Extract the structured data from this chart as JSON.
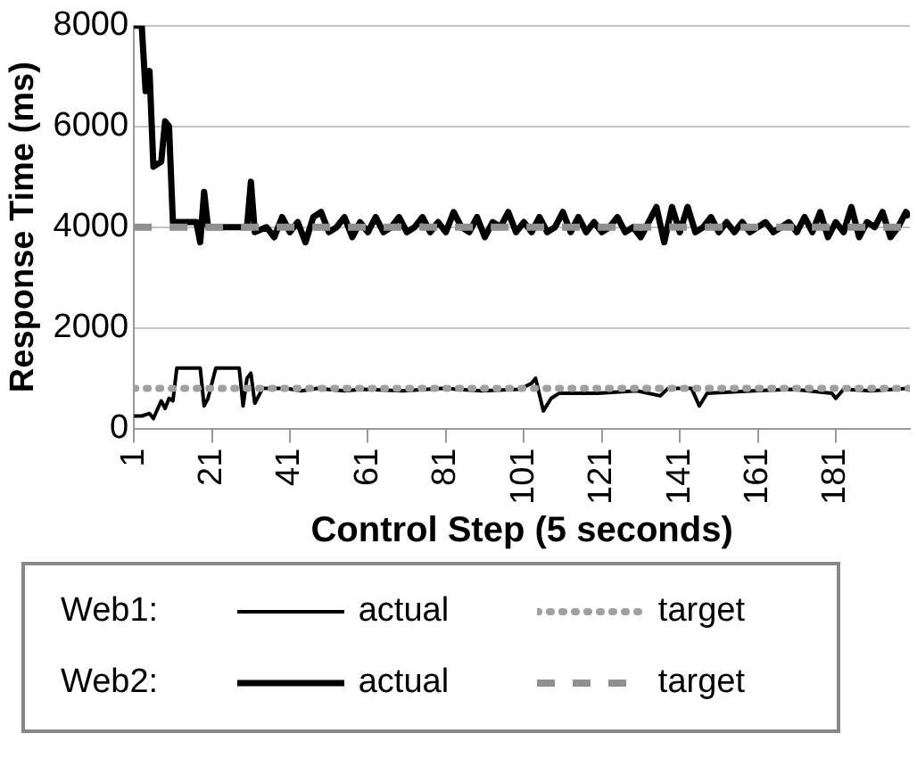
{
  "chart_data": {
    "type": "line",
    "xlabel": "Control Step (5 seconds)",
    "ylabel": "Response Time (ms)",
    "xlim": [
      1,
      200
    ],
    "xticks": [
      1,
      21,
      41,
      61,
      81,
      101,
      121,
      141,
      161,
      181
    ],
    "ylim": [
      0,
      8000
    ],
    "yticks": [
      0,
      2000,
      4000,
      6000,
      8000
    ],
    "grid": "y",
    "legend": "bottom",
    "marker": "none",
    "annotations": [
      "Web1:",
      "Web2:"
    ],
    "series": [
      {
        "name": "actual",
        "color": "#000000",
        "line_style": "solid",
        "x": [
          1,
          3,
          5,
          6,
          8,
          9,
          10,
          11,
          12,
          18,
          19,
          20,
          22,
          28,
          29,
          30,
          31,
          32,
          34,
          40,
          44,
          48,
          55,
          60,
          70,
          80,
          90,
          100,
          103,
          104,
          106,
          108,
          110,
          120,
          130,
          136,
          138,
          144,
          146,
          148,
          160,
          170,
          180,
          181,
          183,
          190,
          200
        ],
        "values": [
          250,
          250,
          300,
          200,
          550,
          400,
          600,
          550,
          1200,
          1200,
          450,
          600,
          1200,
          1200,
          450,
          1000,
          1100,
          500,
          800,
          800,
          750,
          800,
          750,
          780,
          750,
          800,
          750,
          780,
          900,
          1000,
          350,
          600,
          700,
          700,
          750,
          650,
          800,
          800,
          450,
          700,
          750,
          780,
          700,
          600,
          780,
          750,
          800
        ]
      },
      {
        "name": "target",
        "color": "#a0a0a0",
        "line_style": "dotted",
        "x": [
          1,
          200
        ],
        "values": [
          800,
          800
        ]
      },
      {
        "name": "actual",
        "color": "#000000",
        "line_style": "solid",
        "x": [
          1,
          3,
          4,
          5,
          6,
          8,
          9,
          10,
          11,
          17,
          18,
          19,
          20,
          30,
          31,
          32,
          35,
          37,
          39,
          41,
          43,
          45,
          47,
          49,
          51,
          53,
          55,
          57,
          59,
          61,
          63,
          65,
          67,
          69,
          71,
          73,
          75,
          77,
          79,
          81,
          83,
          85,
          87,
          89,
          91,
          93,
          95,
          97,
          99,
          101,
          103,
          105,
          107,
          109,
          111,
          113,
          115,
          117,
          119,
          121,
          123,
          125,
          127,
          129,
          131,
          133,
          135,
          137,
          139,
          141,
          143,
          145,
          147,
          149,
          151,
          153,
          155,
          157,
          159,
          161,
          163,
          165,
          167,
          169,
          171,
          173,
          175,
          177,
          179,
          181,
          183,
          185,
          187,
          189,
          191,
          193,
          195,
          197,
          199,
          200
        ],
        "values": [
          8000,
          8000,
          6700,
          7100,
          5200,
          5300,
          6100,
          6000,
          4100,
          4100,
          3700,
          4700,
          4000,
          4000,
          4900,
          3900,
          4000,
          3800,
          4200,
          3900,
          4100,
          3700,
          4200,
          4300,
          3900,
          4000,
          4200,
          3800,
          4100,
          3900,
          4200,
          3900,
          4000,
          4200,
          3900,
          4000,
          4200,
          3900,
          4100,
          3900,
          4300,
          4000,
          3900,
          4200,
          3800,
          4100,
          4000,
          4300,
          3900,
          4100,
          3900,
          4200,
          3900,
          4000,
          4300,
          3900,
          4200,
          3900,
          4100,
          3900,
          4000,
          4200,
          3900,
          4000,
          3800,
          4100,
          4400,
          3700,
          4400,
          3900,
          4400,
          3900,
          4000,
          4200,
          3900,
          4100,
          3900,
          4100,
          3900,
          4000,
          4100,
          3900,
          4000,
          4100,
          3900,
          4200,
          3900,
          4300,
          3800,
          4100,
          3900,
          4400,
          3800,
          4100,
          4000,
          4300,
          3800,
          4000,
          4300,
          4200
        ]
      },
      {
        "name": "target",
        "color": "#909090",
        "line_style": "dashed",
        "x": [
          1,
          200
        ],
        "values": [
          4000,
          4000
        ]
      }
    ]
  }
}
